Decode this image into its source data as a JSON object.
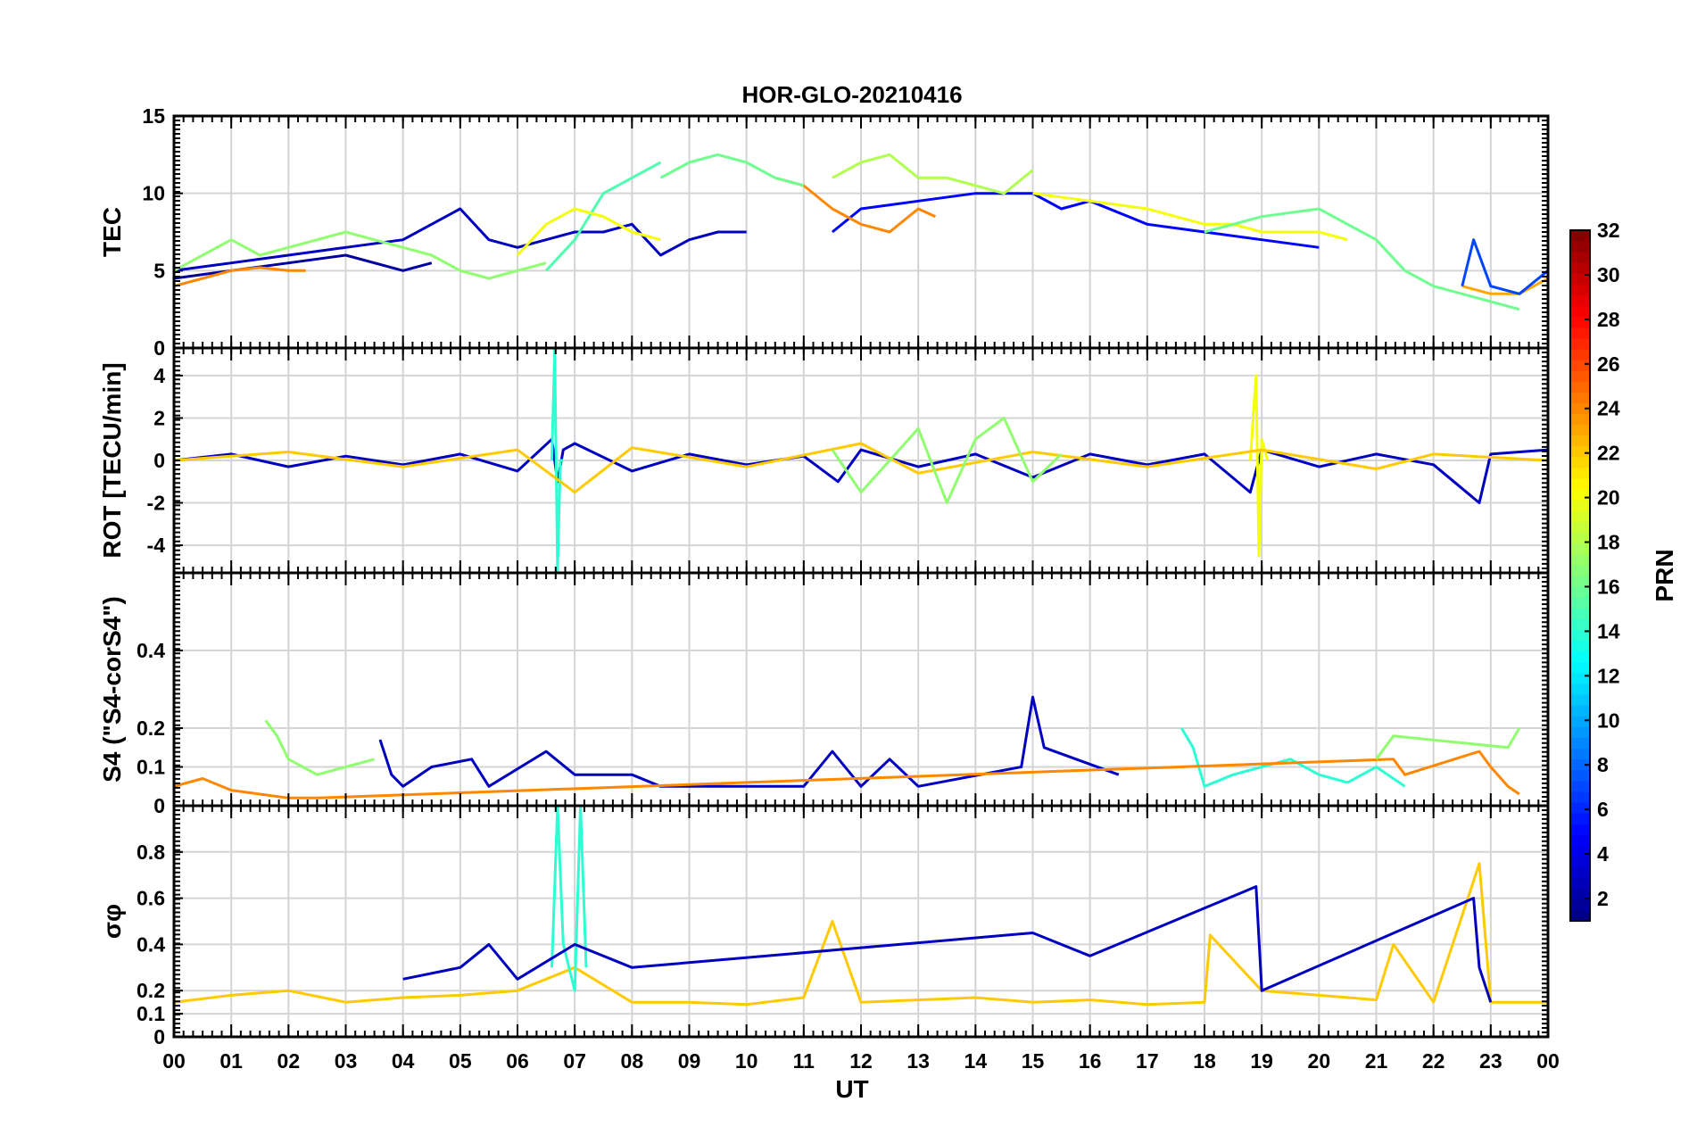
{
  "chart_data": {
    "type": "line",
    "title": "HOR-GLO-20210416",
    "xlabel": "UT",
    "x_ticks": [
      "00",
      "01",
      "02",
      "03",
      "04",
      "05",
      "06",
      "07",
      "08",
      "09",
      "10",
      "11",
      "12",
      "13",
      "14",
      "15",
      "16",
      "17",
      "18",
      "19",
      "20",
      "21",
      "22",
      "23",
      "00"
    ],
    "xlim": [
      0,
      24
    ],
    "colorbar": {
      "label": "PRN",
      "range": [
        1,
        32
      ],
      "ticks": [
        "2",
        "4",
        "6",
        "8",
        "10",
        "12",
        "14",
        "16",
        "18",
        "20",
        "22",
        "24",
        "26",
        "28",
        "30",
        "32"
      ],
      "colormap": "jet"
    },
    "panels": [
      {
        "id": "tec",
        "ylabel": "TEC",
        "ylim": [
          0,
          15
        ],
        "yticks": [
          "0",
          "5",
          "10",
          "15"
        ],
        "series": [
          {
            "prn": 3,
            "x": [
              0,
              1,
              2,
              3,
              4,
              4.5,
              5,
              5.5,
              6,
              6.5,
              7,
              7.5,
              8,
              8.5,
              9,
              9.5,
              10
            ],
            "y": [
              5,
              5.5,
              6,
              6.5,
              7,
              8,
              9,
              7,
              6.5,
              7,
              7.5,
              7.5,
              8,
              6,
              7,
              7.5,
              7.5
            ]
          },
          {
            "prn": 2,
            "x": [
              0,
              1,
              2,
              3,
              4,
              4.5
            ],
            "y": [
              4.5,
              5,
              5.5,
              6,
              5,
              5.5
            ]
          },
          {
            "prn": 5,
            "x": [
              11.5,
              12,
              13,
              14,
              15,
              15.5,
              16,
              17,
              18,
              19,
              20
            ],
            "y": [
              7.5,
              9,
              9.5,
              10,
              10,
              9,
              9.5,
              8,
              7.5,
              7,
              6.5
            ]
          },
          {
            "prn": 24,
            "x": [
              0,
              0.5,
              1,
              1.5,
              2,
              2.3
            ],
            "y": [
              4,
              4.5,
              5,
              5.2,
              5,
              5
            ]
          },
          {
            "prn": 24,
            "x": [
              10.5,
              11,
              11.5,
              12,
              12.5,
              13,
              13.3
            ],
            "y": [
              11,
              10.5,
              9,
              8,
              7.5,
              9,
              8.5
            ]
          },
          {
            "prn": 15,
            "x": [
              6.5,
              7,
              7.5,
              8,
              8.5
            ],
            "y": [
              5,
              7,
              10,
              11,
              12
            ]
          },
          {
            "prn": 16,
            "x": [
              8.5,
              9,
              9.5,
              10,
              10.5,
              11
            ],
            "y": [
              11,
              12,
              12.5,
              12,
              11,
              10.5
            ]
          },
          {
            "prn": 18,
            "x": [
              11.5,
              12,
              12.5,
              13,
              13.5,
              14,
              14.5,
              15
            ],
            "y": [
              11,
              12,
              12.5,
              11,
              11,
              10.5,
              10,
              11.5
            ]
          },
          {
            "prn": 17,
            "x": [
              0,
              0.5,
              1,
              1.5,
              2,
              2.5,
              3,
              3.5,
              4,
              4.5,
              5,
              5.5,
              6,
              6.5
            ],
            "y": [
              5,
              6,
              7,
              6,
              6.5,
              7,
              7.5,
              7,
              6.5,
              6,
              5,
              4.5,
              5,
              5.5
            ]
          },
          {
            "prn": 20,
            "x": [
              6,
              6.5,
              7,
              7.5,
              8,
              8.5
            ],
            "y": [
              6,
              8,
              9,
              8.5,
              7.5,
              7
            ]
          },
          {
            "prn": 20,
            "x": [
              15,
              16,
              17,
              17.5,
              18,
              18.5,
              19,
              19.5,
              20,
              20.5
            ],
            "y": [
              10,
              9.5,
              9,
              8.5,
              8,
              8,
              7.5,
              7.5,
              7.5,
              7
            ]
          },
          {
            "prn": 16,
            "x": [
              18,
              19,
              20,
              21,
              21.5,
              22,
              22.5,
              23,
              23.5
            ],
            "y": [
              7.5,
              8.5,
              9,
              7,
              5,
              4,
              3.5,
              3,
              2.5
            ]
          },
          {
            "prn": 23,
            "x": [
              22.5,
              23,
              23.5,
              24
            ],
            "y": [
              4,
              3.5,
              3.5,
              4.5
            ]
          },
          {
            "prn": 7,
            "x": [
              22.5,
              22.7,
              23,
              23.5,
              24
            ],
            "y": [
              4,
              7,
              4,
              3.5,
              5
            ]
          }
        ]
      },
      {
        "id": "rot",
        "ylabel": "ROT [TECU/min]",
        "ylim": [
          -5.3,
          5.3
        ],
        "yticks": [
          "-4",
          "-2",
          "0",
          "2",
          "4"
        ],
        "series": [
          {
            "prn": 3,
            "x": [
              0,
              1,
              2,
              3,
              4,
              5,
              6,
              6.6,
              6.7,
              6.8,
              7,
              8,
              9,
              10,
              11,
              11.6,
              12,
              13,
              14,
              15,
              16,
              17,
              18,
              18.8,
              19,
              20,
              21,
              22,
              22.8,
              23,
              24
            ],
            "y": [
              0,
              0.3,
              -0.3,
              0.2,
              -0.2,
              0.3,
              -0.5,
              1,
              -1,
              0.5,
              0.8,
              -0.5,
              0.3,
              -0.2,
              0.2,
              -1,
              0.5,
              -0.3,
              0.3,
              -0.8,
              0.3,
              -0.2,
              0.3,
              -1.5,
              0.5,
              -0.3,
              0.3,
              -0.2,
              -2,
              0.3,
              0.5
            ]
          },
          {
            "prn": 14,
            "x": [
              6.6,
              6.65,
              6.7,
              6.75,
              6.8
            ],
            "y": [
              0,
              5.2,
              -5.2,
              0,
              0
            ]
          },
          {
            "prn": 20,
            "x": [
              18.8,
              18.9,
              18.95,
              19,
              19.1
            ],
            "y": [
              0,
              4,
              -4.5,
              1,
              0
            ]
          },
          {
            "prn": 22,
            "x": [
              0,
              2,
              4,
              6,
              7,
              8,
              10,
              12,
              13,
              15,
              17,
              19,
              21,
              22,
              24
            ],
            "y": [
              0,
              0.4,
              -0.3,
              0.5,
              -1.5,
              0.6,
              -0.3,
              0.8,
              -0.6,
              0.4,
              -0.3,
              0.5,
              -0.4,
              0.3,
              0
            ]
          },
          {
            "prn": 17,
            "x": [
              11.5,
              12,
              13,
              13.5,
              14,
              14.5,
              15,
              15.5
            ],
            "y": [
              0.5,
              -1.5,
              1.5,
              -2,
              1,
              2,
              -1,
              0.3
            ]
          }
        ]
      },
      {
        "id": "s4",
        "ylabel": "S4 (\"S4-corS4\")",
        "ylim": [
          0,
          0.6
        ],
        "yticks": [
          "0",
          "0.1",
          "0.2",
          "0.4"
        ],
        "series": [
          {
            "prn": 17,
            "x": [
              1.6,
              1.8,
              2,
              2.5,
              3,
              3.5
            ],
            "y": [
              0.22,
              0.18,
              0.12,
              0.08,
              0.1,
              0.12
            ]
          },
          {
            "prn": 3,
            "x": [
              3.6,
              3.8,
              4,
              4.5,
              5.2,
              5.5,
              6.5,
              7,
              8,
              8.5,
              11,
              11.5,
              12,
              12.5,
              13,
              14.8,
              15,
              15.2,
              16.5
            ],
            "y": [
              0.17,
              0.08,
              0.05,
              0.1,
              0.12,
              0.05,
              0.14,
              0.08,
              0.08,
              0.05,
              0.05,
              0.14,
              0.05,
              0.12,
              0.05,
              0.1,
              0.28,
              0.15,
              0.08
            ]
          },
          {
            "prn": 14,
            "x": [
              17.6,
              17.8,
              18,
              18.5,
              19,
              19.5,
              20,
              20.5,
              21,
              21.5
            ],
            "y": [
              0.2,
              0.15,
              0.05,
              0.08,
              0.1,
              0.12,
              0.08,
              0.06,
              0.1,
              0.05
            ]
          },
          {
            "prn": 24,
            "x": [
              0,
              0.5,
              1,
              1.5,
              2,
              2.5,
              21.3,
              21.5,
              22.8,
              23,
              23.3,
              23.5
            ],
            "y": [
              0.05,
              0.07,
              0.04,
              0.03,
              0.02,
              0.02,
              0.12,
              0.08,
              0.14,
              0.1,
              0.05,
              0.03
            ]
          },
          {
            "prn": 17,
            "x": [
              21,
              21.3,
              23.3,
              23.5
            ],
            "y": [
              0.12,
              0.18,
              0.15,
              0.2
            ]
          }
        ]
      },
      {
        "id": "sigma",
        "ylabel": "σφ",
        "ylim": [
          0,
          1
        ],
        "yticks": [
          "0",
          "0.1",
          "0.2",
          "0.4",
          "0.6",
          "0.8"
        ],
        "series": [
          {
            "prn": 22,
            "x": [
              0,
              1,
              2,
              3,
              4,
              5,
              6,
              7,
              8,
              9,
              10,
              11,
              11.5,
              12,
              13,
              14,
              15,
              16,
              17,
              18,
              18.1,
              19,
              20,
              21,
              21.3,
              22,
              22.8,
              23,
              24
            ],
            "y": [
              0.15,
              0.18,
              0.2,
              0.15,
              0.17,
              0.18,
              0.2,
              0.3,
              0.15,
              0.15,
              0.14,
              0.17,
              0.5,
              0.15,
              0.16,
              0.17,
              0.15,
              0.16,
              0.14,
              0.15,
              0.44,
              0.2,
              0.18,
              0.16,
              0.4,
              0.15,
              0.75,
              0.15,
              0.15
            ]
          },
          {
            "prn": 14,
            "x": [
              6.6,
              6.7,
              6.8,
              7,
              7.1,
              7.2
            ],
            "y": [
              0.3,
              1,
              0.4,
              0.2,
              1,
              0.3
            ]
          },
          {
            "prn": 3,
            "x": [
              4,
              5,
              5.5,
              6,
              7,
              8,
              15,
              16,
              18.9,
              19,
              22.7,
              22.8,
              23
            ],
            "y": [
              0.25,
              0.3,
              0.4,
              0.25,
              0.4,
              0.3,
              0.45,
              0.35,
              0.65,
              0.2,
              0.6,
              0.3,
              0.15
            ]
          }
        ]
      }
    ]
  }
}
